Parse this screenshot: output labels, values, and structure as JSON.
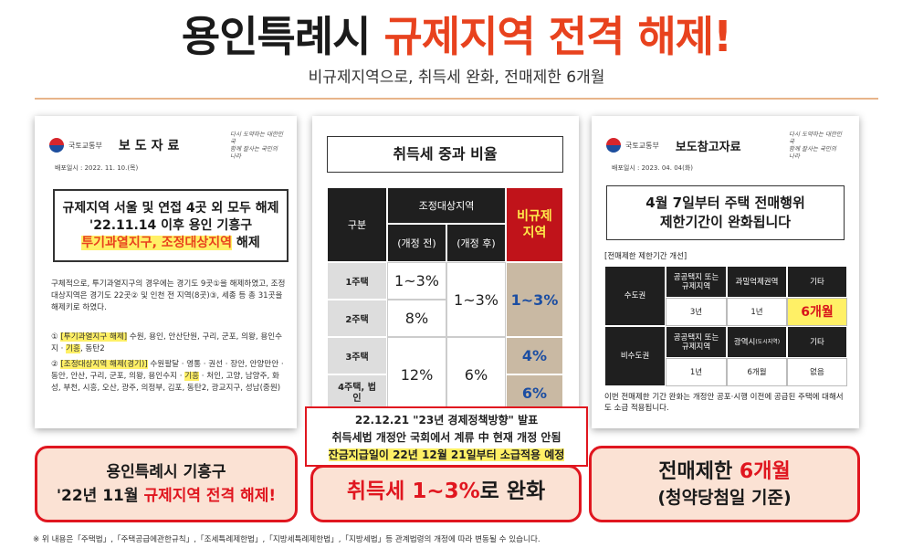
{
  "header": {
    "title_a": "용인특례시 ",
    "title_b": "규제지역 전격 해제!",
    "subtitle": "비규제지역으로, 취득세 완화, 전매제한 6개월"
  },
  "doc1": {
    "ministry": "국토교통부",
    "doc_type": "보도자료",
    "motto_1": "다시 도약하는 대한민국",
    "motto_2": "함께 잘사는 국민의 나라",
    "date": "배포일시 : 2022. 11. 10.(목)",
    "box_line1": "규제지역 서울 및 연접 4곳 외 모두 해제",
    "box_line2": "'22.11.14 이후 용인 기흥구",
    "box_line3a": "투기과열지구, 조정대상지역",
    "box_line3b": " 해제",
    "para1": "구체적으로, 투기과열지구의 경우에는 경기도 9곳①을 해제하였고, 조정대상지역은 경기도 22곳② 및 인천 전 지역(8곳)③, 세종 등 총 31곳을 해제키로 하였다.",
    "item1_tag": "[투기과열지구 해제]",
    "item1_a": "① ",
    "item1_b": " 수원, 용인, 안산단원, 구리, 군포, 의왕, 용인수지 · ",
    "item1_hl": "기흥",
    "item1_c": ", 동탄2",
    "item2_a": "② ",
    "item2_tag": "[조정대상지역 해제(경기)]",
    "item2_b": " 수원팔달 · 영통 · 권선 · 장안, 안양만안 · 동안, 안산, 구리, 군포, 의왕, 용인수지 · ",
    "item2_hl": "기흥",
    "item2_c": " · 처인, 고양, 남양주, 화성, 부천, 시흥, 오산, 광주, 의정부, 김포, 동탄2, 광교지구, 성남(중원)"
  },
  "table": {
    "title": "취득세 중과 비율",
    "col_gubun": "구분",
    "col_adjust": "조정대상지역",
    "col_before": "(개정 전)",
    "col_after": "(개정 후)",
    "col_nonreg": "비규제 지역",
    "rows": [
      {
        "label": "1주택",
        "before": "1~3%"
      },
      {
        "label": "2주택",
        "before": "8%"
      },
      {
        "label": "3주택",
        "before": "12%"
      },
      {
        "label": "4주택, 법인"
      }
    ],
    "after_12": "1~3%",
    "after_34": "6%",
    "non_12": "1~3%",
    "non_3": "4%",
    "non_4": "6%"
  },
  "notice": {
    "line1": "22.12.21 \"23년 경제정책방향\" 발표",
    "line2": "취득세법 개정안 국회에서 계류 中 현재 개정 안됨",
    "line3": "잔금지급일이 22년 12월 21일부터 소급적용 예정"
  },
  "doc3": {
    "ministry": "국토교통부",
    "doc_type": "보도참고자료",
    "date": "배포일시 : 2023. 04. 04(화)",
    "box_line1": "4월 7일부터 주택 전매행위",
    "box_line2": "제한기간이 완화됩니다",
    "section": "[전매제한 제한기간 개선]",
    "metro": "수도권",
    "nonmetro": "비수도권",
    "h_public": "공공택지 또는 규제지역",
    "h_over": "과밀억제권역",
    "h_etc": "기타",
    "h_metro_city": "광역시",
    "h_metro_city_small": "(도시지역)",
    "metro_v1": "3년",
    "metro_v2": "1년",
    "metro_v3": "6개월",
    "non_v1": "1년",
    "non_v2": "6개월",
    "non_v3": "없음",
    "note": "이번 전매제한 기간 완화는 개정안 공포·시행 이전에 공급된 주택에 대해서도 소급 적용됩니다."
  },
  "bottom": {
    "b1_line1": "용인특례시 기흥구",
    "b1_line2a": "'22년 11월 ",
    "b1_line2b": "규제지역 전격 해제!",
    "b2_a": "취득세 1~3%",
    "b2_b": "로 완화",
    "b3_line1a": "전매제한 ",
    "b3_line1b": "6개월",
    "b3_line2": "(청약당첨일 기준)"
  },
  "footnote": "※ 위 내용은「주택법」,「주택공급에관한규칙」,「조세특례제한법」,「지방세특례제한법」,「지방세법」등 관계법령의 개정에 따라 변동될 수 있습니다."
}
